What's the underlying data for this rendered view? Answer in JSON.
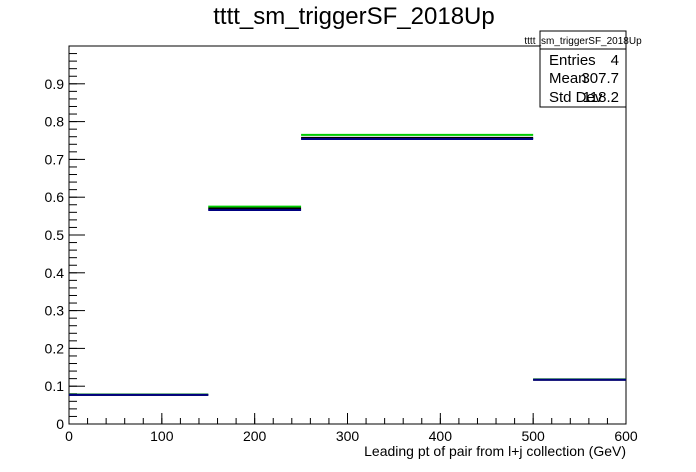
{
  "chart_data": {
    "type": "line",
    "title": "tttt_sm_triggerSF_2018Up",
    "xlabel": "Leading pt of pair from l+j collection (GeV)",
    "ylabel": "",
    "xlim": [
      0,
      600
    ],
    "ylim": [
      0,
      1.0
    ],
    "x_ticks": [
      "0",
      "100",
      "200",
      "300",
      "400",
      "500",
      "600"
    ],
    "y_ticks": [
      "0",
      "0.1",
      "0.2",
      "0.3",
      "0.4",
      "0.5",
      "0.6",
      "0.7",
      "0.8",
      "0.9"
    ],
    "grid": false,
    "legend_position": "top-right",
    "bin_edges": [
      0,
      150,
      250,
      500,
      600
    ],
    "series": [
      {
        "name": "",
        "color": "#00cc00",
        "values": [
          0.078,
          0.575,
          0.765,
          0.118
        ]
      },
      {
        "name": "",
        "color": "#000000",
        "values": [
          0.077,
          0.57,
          0.757,
          0.117
        ]
      },
      {
        "name": "",
        "color": "#000080",
        "values": [
          0.077,
          0.566,
          0.754,
          0.117
        ]
      }
    ],
    "stats_box": {
      "title": "tttt_sm_triggerSF_2018Up",
      "rows": [
        {
          "label": "Entries",
          "value": "4"
        },
        {
          "label": "Mean",
          "value": "307.7"
        },
        {
          "label": "Std Dev",
          "value": "118.2"
        }
      ]
    }
  }
}
